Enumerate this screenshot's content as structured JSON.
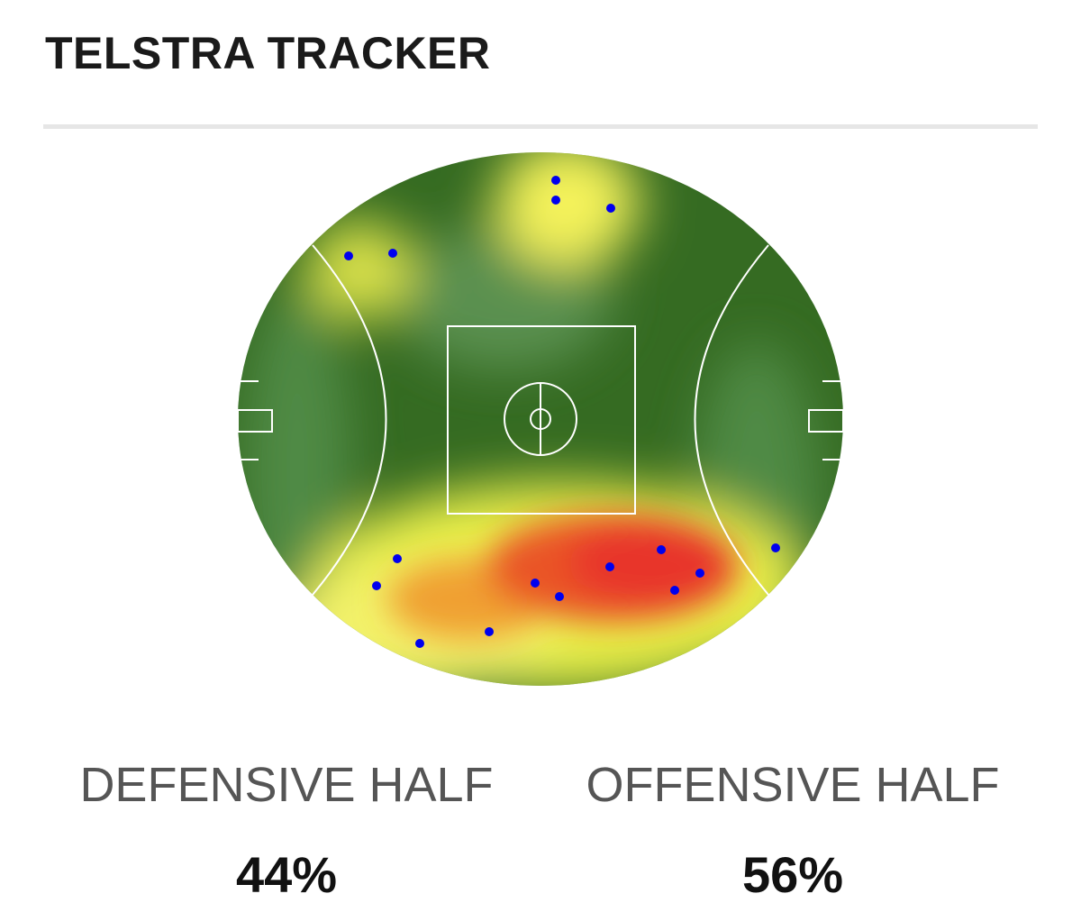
{
  "header": {
    "title": "TELSTRA TRACKER"
  },
  "stats": [
    {
      "label": "DEFENSIVE HALF",
      "value": "44%"
    },
    {
      "label": "OFFENSIVE HALF",
      "value": "56%"
    }
  ]
}
